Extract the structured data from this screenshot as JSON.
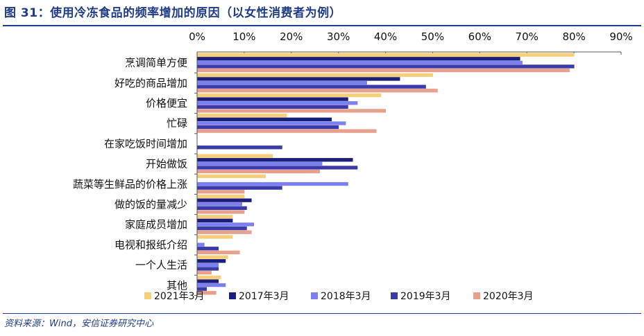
{
  "title": "图 31：使用冷冻食品的频率增加的原因（以女性消费者为例）",
  "source": "资料来源：Wind，安信证券研究中心",
  "colors": [
    "#f7cf7a",
    "#1b1f7a",
    "#7b7ff0",
    "#3a3aa8",
    "#e8a08e"
  ],
  "chart_data": {
    "type": "bar",
    "orientation": "horizontal",
    "title": "",
    "xlabel": "",
    "ylabel": "",
    "xlim": [
      0,
      90
    ],
    "x_ticks": [
      "0%",
      "10%",
      "20%",
      "30%",
      "40%",
      "50%",
      "60%",
      "70%",
      "80%",
      "90%"
    ],
    "x_axis_position": "top",
    "legend_position": "bottom",
    "grid": false,
    "categories": [
      "烹调简单方便",
      "好吃的商品增加",
      "价格便宜",
      "忙碌",
      "在家吃饭时间增加",
      "开始做饭",
      "蔬菜等生鲜品的价格上涨",
      "做的饭的量减少",
      "家庭成员增加",
      "电视和报纸介绍",
      "一个人生活",
      "其他"
    ],
    "series": [
      {
        "name": "2021年3月",
        "values": [
          80,
          50,
          39,
          19,
          0,
          16,
          14.5,
          10,
          7.5,
          7.5,
          6.5,
          5
        ]
      },
      {
        "name": "2017年3月",
        "values": [
          68.5,
          43,
          32,
          28.5,
          0,
          33,
          0,
          11.5,
          7.5,
          0,
          6,
          4.5
        ]
      },
      {
        "name": "2018年3月",
        "values": [
          69,
          36,
          34,
          31.5,
          0,
          26.5,
          32,
          9.5,
          12,
          1.5,
          4.5,
          6
        ]
      },
      {
        "name": "2019年3月",
        "values": [
          80,
          48.5,
          32,
          30,
          18,
          34,
          18,
          10.5,
          10.5,
          4.5,
          4.5,
          2
        ]
      },
      {
        "name": "2020年3月",
        "values": [
          79,
          51,
          40,
          38,
          0,
          26,
          10,
          10,
          11.5,
          9,
          3,
          4
        ]
      }
    ]
  }
}
